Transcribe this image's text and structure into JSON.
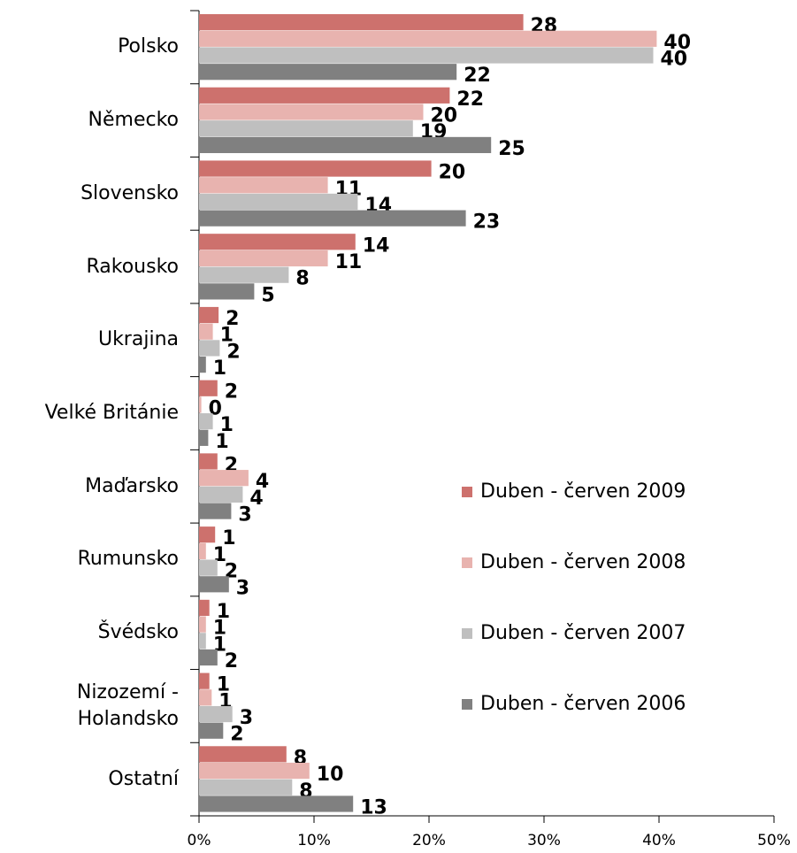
{
  "chart_data": {
    "type": "hbar",
    "categories": [
      "Polsko",
      "Německo",
      "Slovensko",
      "Rakousko",
      "Ukrajina",
      "Velké Británie",
      "Maďarsko",
      "Rumunsko",
      "Švédsko",
      "Nizozemí - Holandsko",
      "Ostatní"
    ],
    "series": [
      {
        "name": "Duben - červen 2009",
        "color": "#cd716d",
        "values": [
          28.2,
          21.8,
          20.2,
          13.6,
          1.7,
          1.6,
          1.6,
          1.4,
          0.9,
          0.9,
          7.6
        ],
        "value_labels": [
          "28",
          "22",
          "20",
          "14",
          "2",
          "2",
          "2",
          "1",
          "1",
          "1",
          "8"
        ]
      },
      {
        "name": "Duben - červen 2008",
        "color": "#e8b3af",
        "values": [
          39.8,
          19.5,
          11.2,
          11.2,
          1.2,
          0.2,
          4.3,
          0.6,
          0.6,
          1.1,
          9.6
        ],
        "value_labels": [
          "40",
          "20",
          "11",
          "11",
          "1",
          "0",
          "4",
          "1",
          "1",
          "1",
          "10"
        ]
      },
      {
        "name": "Duben - červen 2007",
        "color": "#bfbfbf",
        "values": [
          39.5,
          18.6,
          13.8,
          7.8,
          1.8,
          1.2,
          3.8,
          1.6,
          0.6,
          2.9,
          8.1
        ],
        "value_labels": [
          "40",
          "19",
          "14",
          "8",
          "2",
          "1",
          "4",
          "2",
          "1",
          "3",
          "8"
        ]
      },
      {
        "name": "Duben - červen 2006",
        "color": "#808080",
        "values": [
          22.4,
          25.4,
          23.2,
          4.8,
          0.6,
          0.8,
          2.8,
          2.6,
          1.6,
          2.1,
          13.4
        ],
        "value_labels": [
          "22",
          "25",
          "23",
          "5",
          "1",
          "1",
          "3",
          "3",
          "2",
          "2",
          "13"
        ]
      }
    ],
    "xlim": [
      0,
      50
    ],
    "xticks": [
      {
        "value": 0,
        "label": "0%"
      },
      {
        "value": 10,
        "label": "10%"
      },
      {
        "value": 20,
        "label": "20%"
      },
      {
        "value": 30,
        "label": "30%"
      },
      {
        "value": 40,
        "label": "40%"
      },
      {
        "value": 50,
        "label": "50%"
      }
    ],
    "legend": "right"
  }
}
